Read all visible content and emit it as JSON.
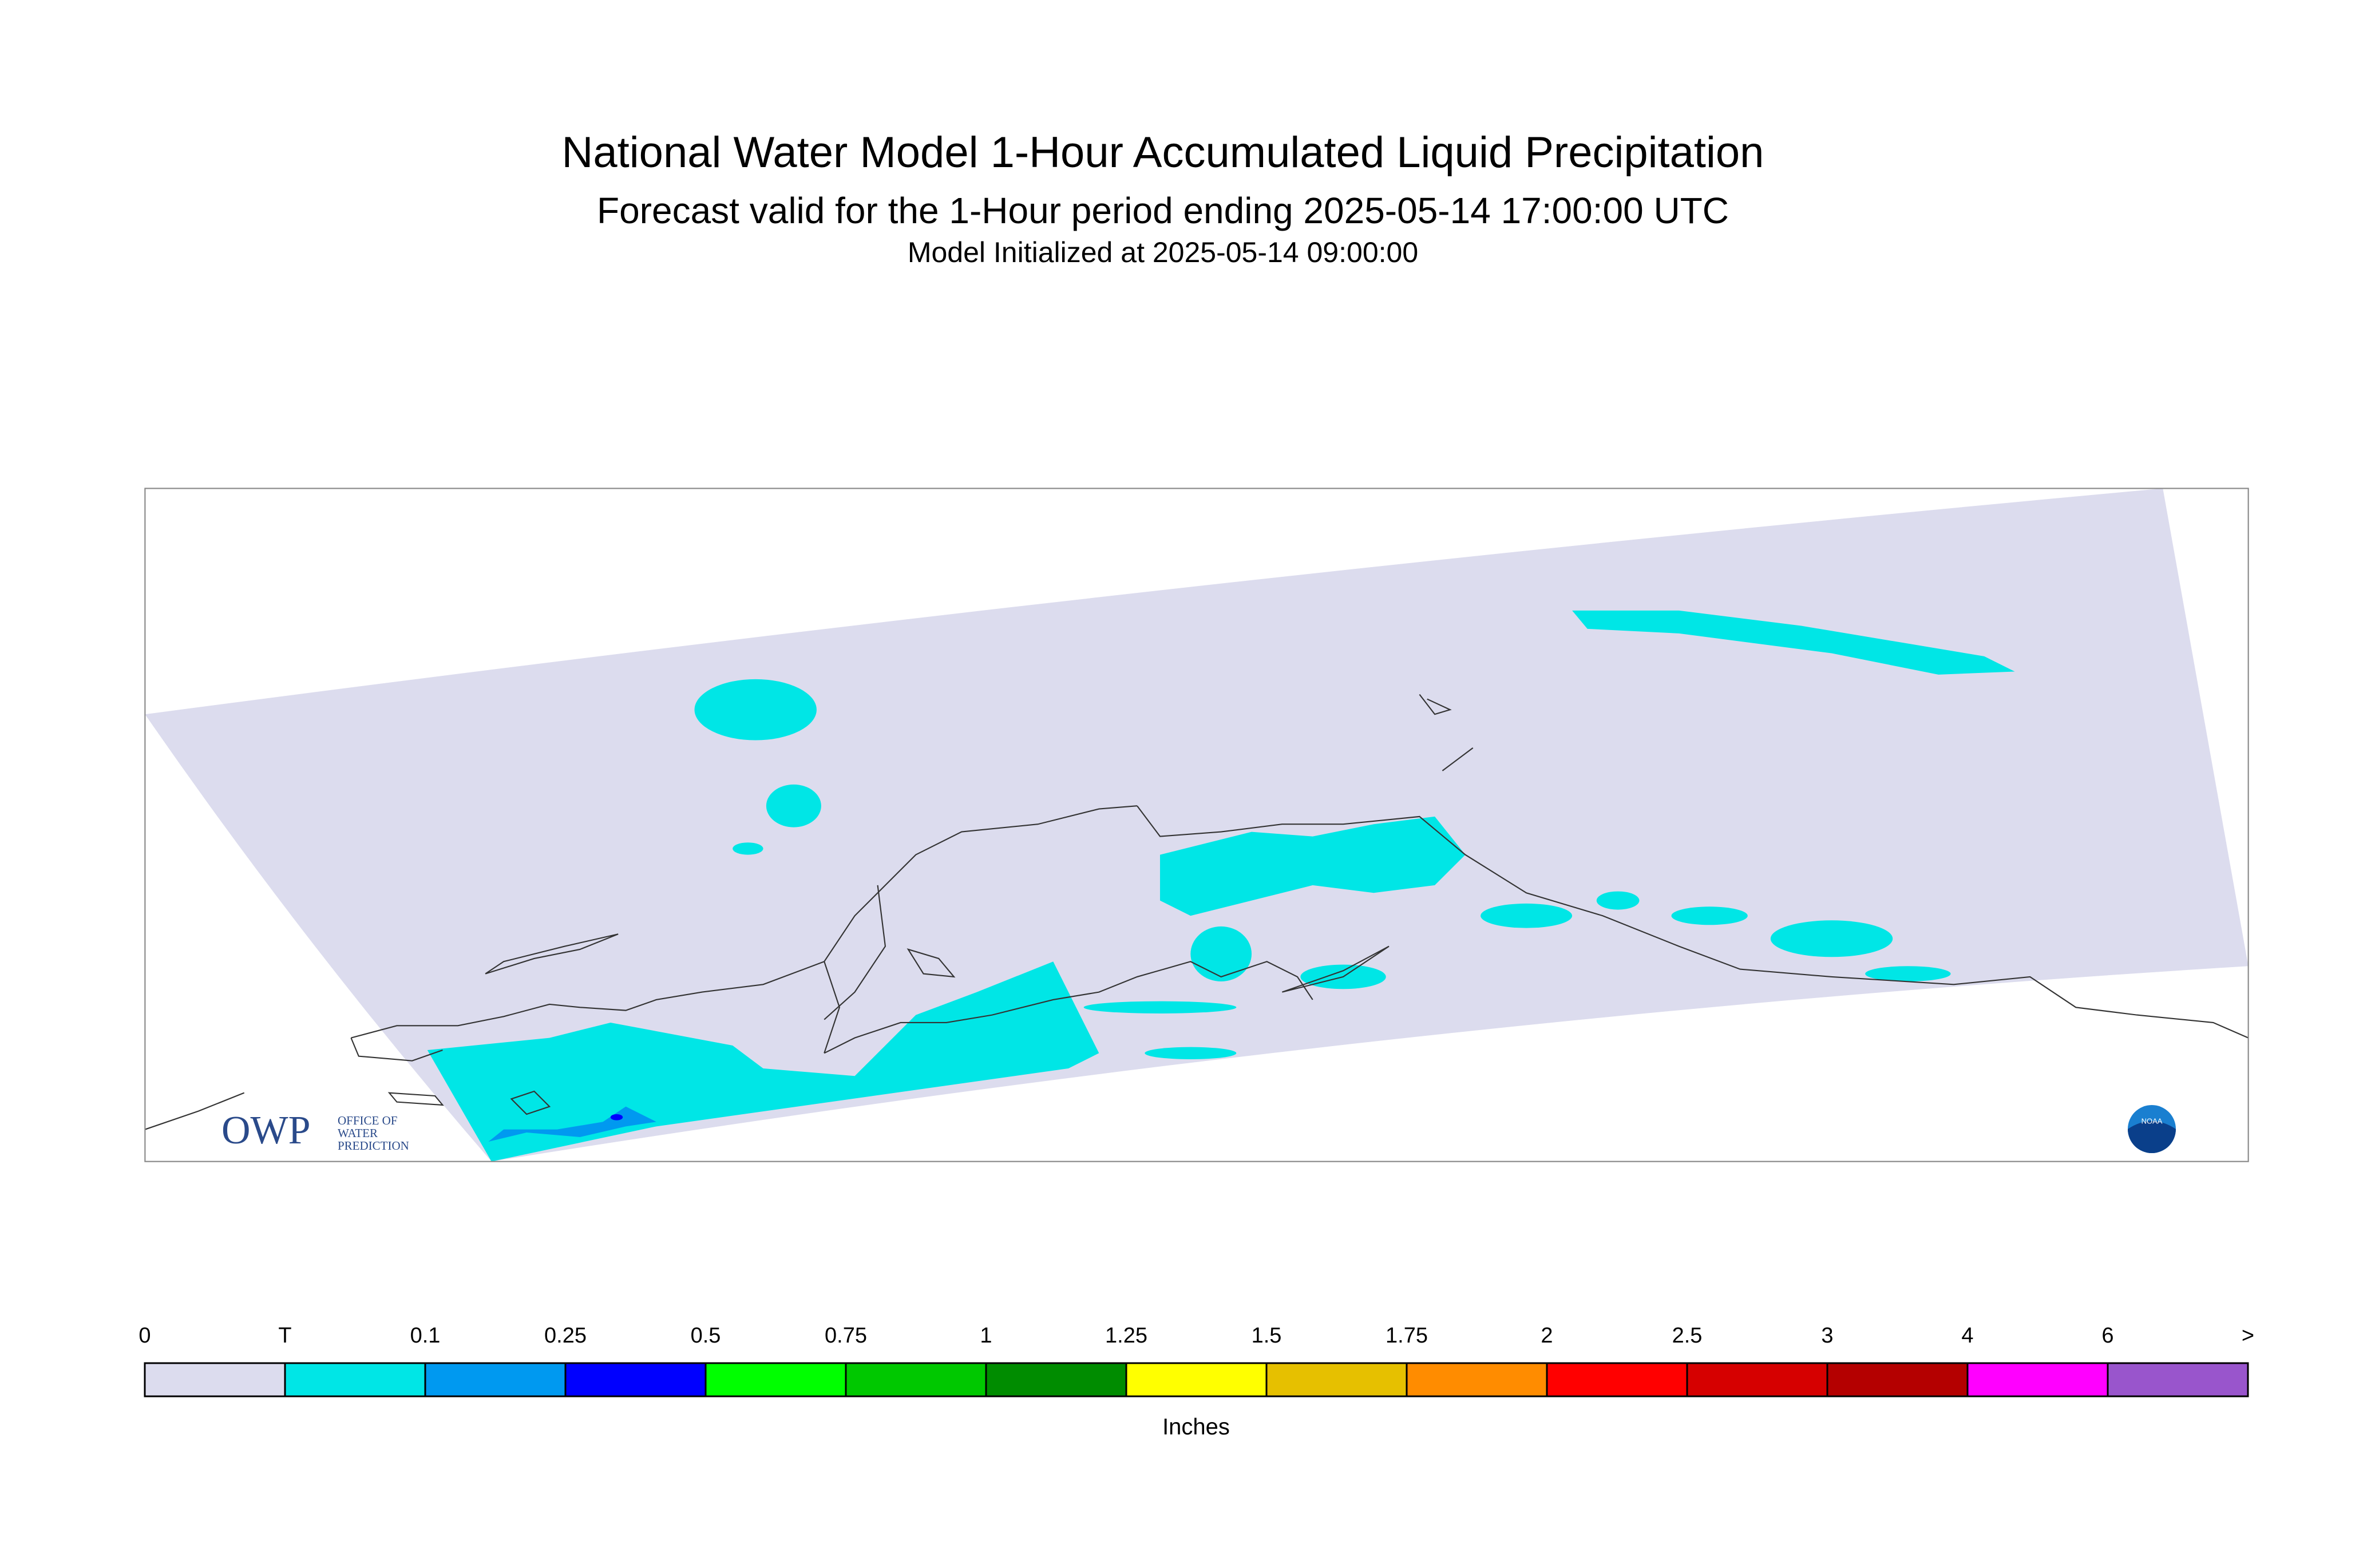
{
  "header": {
    "title": "National Water Model 1-Hour Accumulated Liquid Precipitation",
    "subtitle": "Forecast valid for the 1-Hour period ending 2025-05-14 17:00:00 UTC",
    "init": "Model Initialized at 2025-05-14 09:00:00"
  },
  "logos": {
    "owp": "OWP",
    "owp_lines": [
      "OFFICE OF",
      "WATER",
      "PREDICTION"
    ],
    "noaa": "NOAA"
  },
  "legend": {
    "labels": [
      "0",
      "T",
      "0.1",
      "0.25",
      "0.5",
      "0.75",
      "1",
      "1.25",
      "1.5",
      "1.75",
      "2",
      "2.5",
      "3",
      "4",
      "6",
      ">"
    ],
    "colors": [
      "#dcdcee",
      "#00e6e6",
      "#0099f0",
      "#0000ff",
      "#00ff00",
      "#00c800",
      "#008c00",
      "#ffff00",
      "#e6c000",
      "#ff8c00",
      "#ff0000",
      "#d60000",
      "#b40000",
      "#ff00ff",
      "#9955cc"
    ],
    "units": "Inches"
  }
}
